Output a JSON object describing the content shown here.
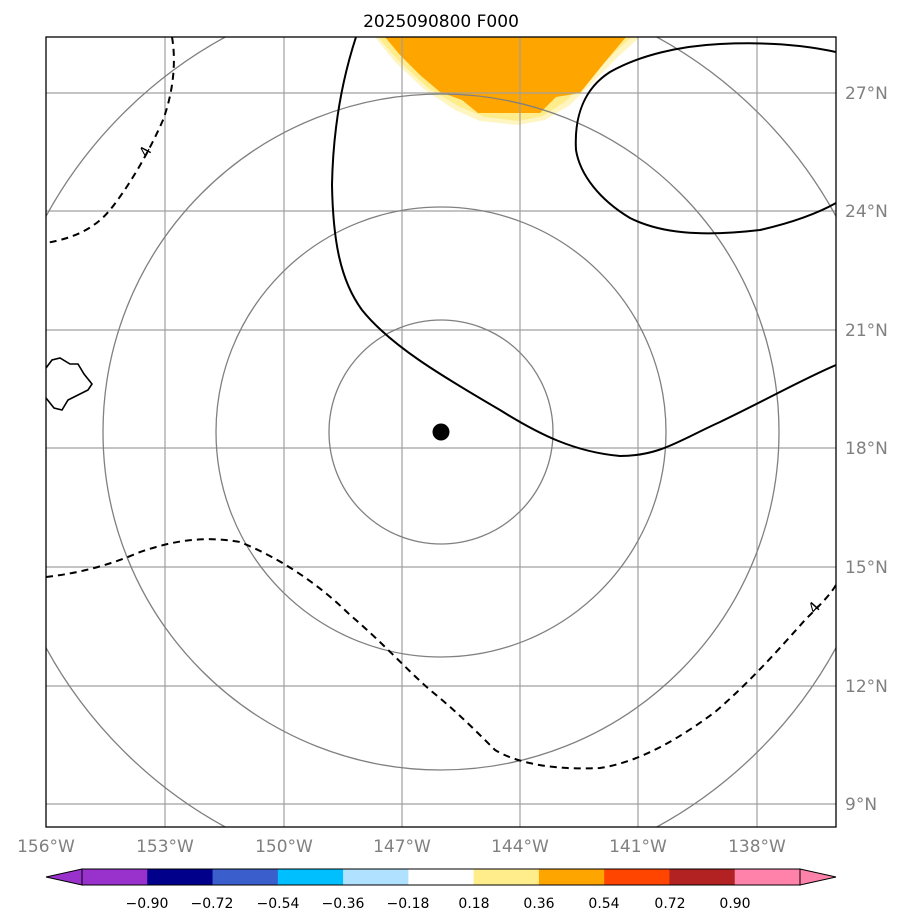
{
  "map": {
    "title": "2025090800 F000",
    "longitude_labels": [
      "156°W",
      "153°W",
      "150°W",
      "147°W",
      "144°W",
      "141°W",
      "138°W"
    ],
    "latitude_labels": [
      "27°N",
      "24°N",
      "21°N",
      "18°N",
      "15°N",
      "12°N",
      "9°N"
    ],
    "contour_labels": [
      "4",
      "4"
    ],
    "center_marker": "storm-center"
  },
  "colorbar": {
    "labels": [
      "−0.90",
      "−0.72",
      "−0.54",
      "−0.36",
      "−0.18",
      "0.18",
      "0.36",
      "0.54",
      "0.72",
      "0.90"
    ],
    "colors": [
      "#9932CC",
      "#00008B",
      "#3A5FCD",
      "#00BFFF",
      "#B0E2FF",
      "#FFFFFF",
      "#FFEC8B",
      "#FFA500",
      "#FF4500",
      "#B22222"
    ],
    "extend_low_color": "#9932CC",
    "extend_high_color": "#FF82AB"
  },
  "colors": {
    "grid": "#a0a0a0",
    "range_rings": "#808080",
    "fill_orange": "#FFA500",
    "fill_yellow": "#FFEC8B",
    "fill_lightyellow": "#FFF5C0"
  }
}
